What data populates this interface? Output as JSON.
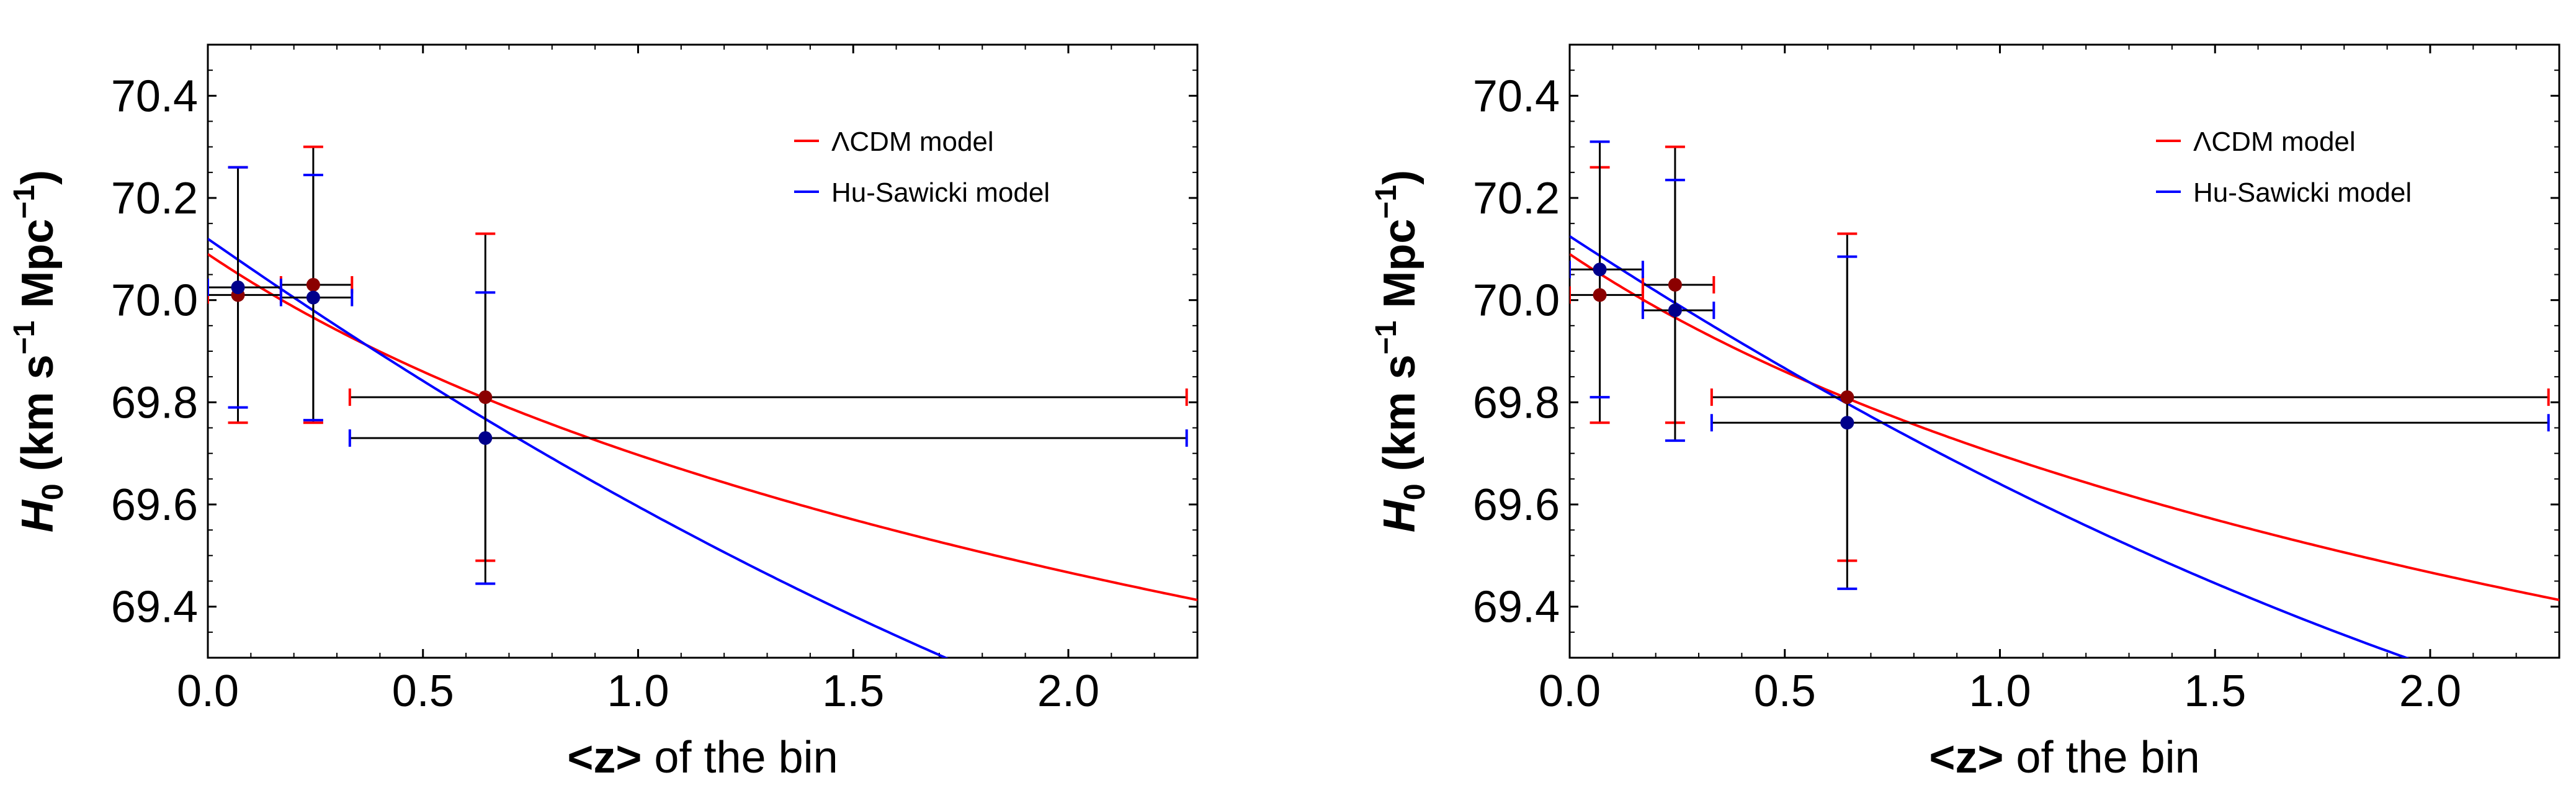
{
  "chart_data": [
    {
      "type": "scatter",
      "title": "",
      "xlabel": {
        "prefix": "<z>",
        "suffix": " of the bin"
      },
      "ylabel": {
        "symbol": "H",
        "subscript": "0",
        "unit_open": " (km s",
        "sup1": "−1",
        "unit_mid": " Mpc",
        "sup2": "−1",
        "unit_close": ")"
      },
      "xlim": [
        0.0,
        2.3
      ],
      "ylim": [
        69.3,
        70.5
      ],
      "xticks": [
        "0.0",
        "0.5",
        "1.0",
        "1.5",
        "2.0"
      ],
      "yticks": [
        "69.4",
        "69.6",
        "69.8",
        "70.0",
        "70.2",
        "70.4"
      ],
      "legend": {
        "placement": "top-right"
      },
      "series": [
        {
          "name": "ΛCDM model",
          "color": "#ff0000",
          "curve": {
            "kind": "lcdm",
            "H0": 70.09,
            "Om": 0.3
          },
          "points": [
            {
              "z": 0.07,
              "H0": 70.01,
              "x_err": [
                0.07,
                0.1
              ],
              "y_err": 0.25
            },
            {
              "z": 0.245,
              "H0": 70.03,
              "x_err": [
                0.075,
                0.09
              ],
              "y_err": 0.27
            },
            {
              "z": 0.645,
              "H0": 69.81,
              "x_err": [
                0.315,
                1.63
              ],
              "y_err": 0.32
            }
          ]
        },
        {
          "name": "Hu-Sawicki model",
          "color": "#0000ff",
          "curve": {
            "kind": "hu-sawicki",
            "H0": 70.12,
            "slope": 1.05
          },
          "points": [
            {
              "z": 0.07,
              "H0": 70.025,
              "x_err": [
                0.07,
                0.1
              ],
              "y_err": 0.235
            },
            {
              "z": 0.245,
              "H0": 70.005,
              "x_err": [
                0.075,
                0.09
              ],
              "y_err": 0.24
            },
            {
              "z": 0.645,
              "H0": 69.73,
              "x_err": [
                0.315,
                1.63
              ],
              "y_err": 0.285
            }
          ]
        }
      ]
    },
    {
      "type": "scatter",
      "title": "",
      "xlabel": {
        "prefix": "<z>",
        "suffix": " of the bin"
      },
      "ylabel": {
        "symbol": "H",
        "subscript": "0",
        "unit_open": " (km s",
        "sup1": "−1",
        "unit_mid": " Mpc",
        "sup2": "−1",
        "unit_close": ")"
      },
      "xlim": [
        0.0,
        2.3
      ],
      "ylim": [
        69.3,
        70.5
      ],
      "xticks": [
        "0.0",
        "0.5",
        "1.0",
        "1.5",
        "2.0"
      ],
      "yticks": [
        "69.4",
        "69.6",
        "69.8",
        "70.0",
        "70.2",
        "70.4"
      ],
      "legend": {
        "placement": "top-right"
      },
      "series": [
        {
          "name": "ΛCDM model",
          "color": "#ff0000",
          "curve": {
            "kind": "lcdm",
            "H0": 70.09,
            "Om": 0.3
          },
          "points": [
            {
              "z": 0.07,
              "H0": 70.01,
              "x_err": [
                0.07,
                0.1
              ],
              "y_err": 0.25
            },
            {
              "z": 0.245,
              "H0": 70.03,
              "x_err": [
                0.075,
                0.09
              ],
              "y_err": 0.27
            },
            {
              "z": 0.645,
              "H0": 69.81,
              "x_err": [
                0.315,
                1.63
              ],
              "y_err": 0.32
            }
          ]
        },
        {
          "name": "Hu-Sawicki model",
          "color": "#0000ff",
          "curve": {
            "kind": "hu-sawicki",
            "H0": 70.125,
            "slope": 0.98
          },
          "points": [
            {
              "z": 0.07,
              "H0": 70.06,
              "x_err": [
                0.07,
                0.1
              ],
              "y_err": 0.25
            },
            {
              "z": 0.245,
              "H0": 69.98,
              "x_err": [
                0.075,
                0.09
              ],
              "y_err": 0.255
            },
            {
              "z": 0.645,
              "H0": 69.76,
              "x_err": [
                0.315,
                1.63
              ],
              "y_err": 0.325
            }
          ]
        }
      ]
    }
  ]
}
